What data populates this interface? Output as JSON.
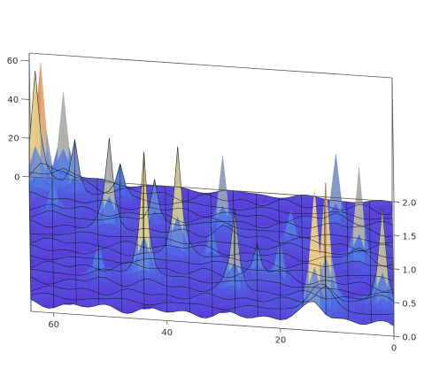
{
  "chart_data": {
    "type": "surface3d",
    "title": "",
    "x_axis": {
      "label": "",
      "range": [
        0,
        64
      ],
      "ticks": [
        "0",
        "20",
        "40",
        "60"
      ]
    },
    "y_axis": {
      "label": "",
      "range": [
        0,
        64
      ],
      "ticks": [
        "0",
        "20",
        "40",
        "60"
      ]
    },
    "z_axis": {
      "label": "",
      "range": [
        0.0,
        2.0
      ],
      "ticks": [
        "0.0",
        "0.5",
        "1.0",
        "1.5",
        "2.0"
      ]
    },
    "base_level": 0.12,
    "colors": {
      "low": "#5a2bd6",
      "mid": "#4f78e6",
      "high_mid": "#e6d28a",
      "high": "#d4182c"
    },
    "peaks": [
      {
        "x": 2,
        "y": 8,
        "z": 1.6
      },
      {
        "x": 6,
        "y": 30,
        "z": 1.5
      },
      {
        "x": 10,
        "y": 50,
        "z": 1.1
      },
      {
        "x": 12,
        "y": 6,
        "z": 2.0
      },
      {
        "x": 14,
        "y": 2,
        "z": 1.9
      },
      {
        "x": 18,
        "y": 38,
        "z": 0.5
      },
      {
        "x": 20,
        "y": 18,
        "z": 0.6
      },
      {
        "x": 24,
        "y": 20,
        "z": 0.5
      },
      {
        "x": 28,
        "y": 12,
        "z": 1.2
      },
      {
        "x": 30,
        "y": 42,
        "z": 1.2
      },
      {
        "x": 32,
        "y": 26,
        "z": 0.5
      },
      {
        "x": 38,
        "y": 28,
        "z": 1.6
      },
      {
        "x": 42,
        "y": 44,
        "z": 0.7
      },
      {
        "x": 44,
        "y": 16,
        "z": 1.9
      },
      {
        "x": 48,
        "y": 56,
        "z": 0.5
      },
      {
        "x": 50,
        "y": 40,
        "z": 1.3
      },
      {
        "x": 52,
        "y": 14,
        "z": 0.5
      },
      {
        "x": 56,
        "y": 56,
        "z": 0.8
      },
      {
        "x": 58,
        "y": 62,
        "z": 1.3
      },
      {
        "x": 60,
        "y": 46,
        "z": 0.5
      },
      {
        "x": 62,
        "y": 58,
        "z": 2.0
      },
      {
        "x": 63,
        "y": 56,
        "z": 1.6
      }
    ]
  }
}
